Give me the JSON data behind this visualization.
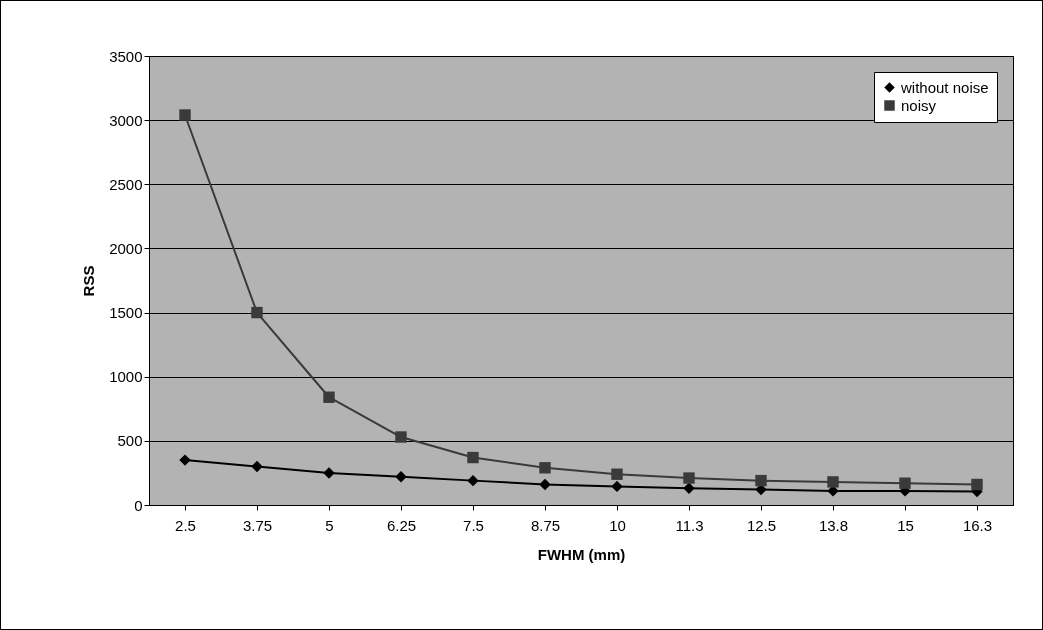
{
  "chart_data": {
    "type": "line",
    "xlabel": "FWHM (mm)",
    "ylabel": "RSS",
    "categories": [
      "2.5",
      "3.75",
      "5",
      "6.25",
      "7.5",
      "8.75",
      "10",
      "11.3",
      "12.5",
      "13.8",
      "15",
      "16.3"
    ],
    "series": [
      {
        "name": "without noise",
        "color": "#000000",
        "marker": "diamond",
        "values": [
          350,
          300,
          250,
          220,
          190,
          160,
          145,
          130,
          120,
          110,
          110,
          105
        ]
      },
      {
        "name": "noisy",
        "color": "#3a3a3a",
        "marker": "square",
        "values": [
          3040,
          1500,
          840,
          530,
          370,
          290,
          240,
          210,
          190,
          180,
          170,
          160
        ]
      }
    ],
    "ylim": [
      0,
      3500
    ],
    "yticks": [
      0,
      500,
      1000,
      1500,
      2000,
      2500,
      3000,
      3500
    ],
    "grid": "y",
    "legend": "top right"
  }
}
